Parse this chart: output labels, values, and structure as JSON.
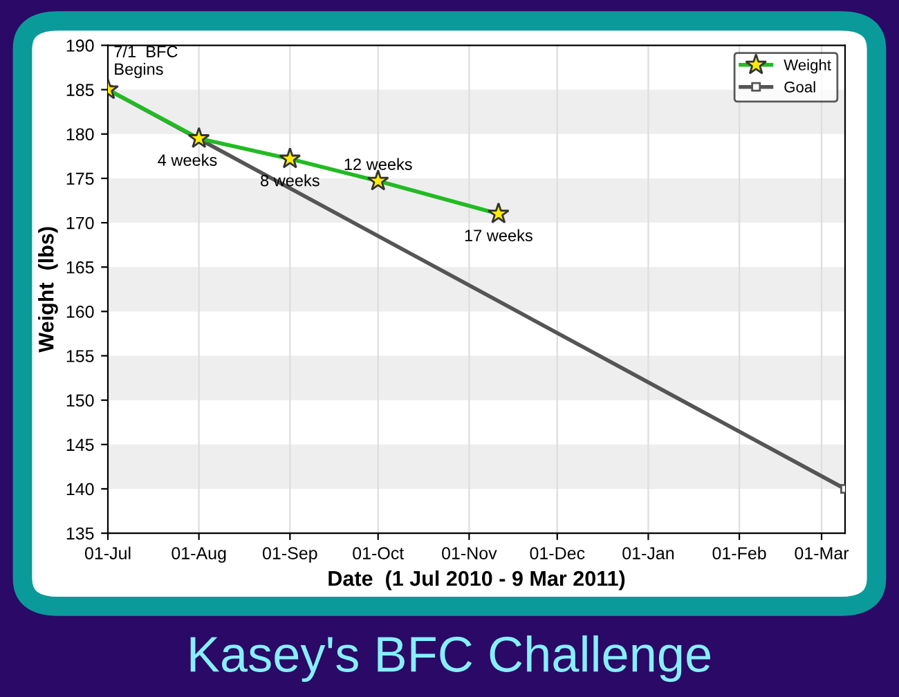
{
  "chart_data": {
    "type": "line",
    "title": "Kasey's BFC Challenge",
    "xlabel": "Date  (1 Jul 2010 - 9 Mar 2011)",
    "ylabel": "Weight  (lbs)",
    "series": [
      {
        "name": "Weight",
        "color": "#22bb22",
        "marker": "star",
        "x": [
          "2010-07-01",
          "2010-08-01",
          "2010-09-01",
          "2010-10-01",
          "2010-11-11"
        ],
        "values": [
          185,
          179.5,
          177.2,
          174.7,
          171
        ]
      },
      {
        "name": "Goal",
        "color": "#555555",
        "marker": "square",
        "x": [
          "2010-07-01",
          "2011-03-09"
        ],
        "values": [
          185,
          140
        ]
      }
    ],
    "annotations": [
      {
        "text": "7/1  BFC\nBegins",
        "x": "2010-07-01",
        "y": 185
      },
      {
        "text": "4 weeks",
        "x": "2010-08-01",
        "y": 179.5
      },
      {
        "text": "8 weeks",
        "x": "2010-09-01",
        "y": 177.2
      },
      {
        "text": "12 weeks",
        "x": "2010-10-01",
        "y": 174.7
      },
      {
        "text": "17 weeks",
        "x": "2010-11-11",
        "y": 171
      }
    ],
    "xlim": [
      "2010-07-01",
      "2011-03-09"
    ],
    "xticks": [
      {
        "value": "2010-07-01",
        "label": "01-Jul"
      },
      {
        "value": "2010-08-01",
        "label": "01-Aug"
      },
      {
        "value": "2010-09-01",
        "label": "01-Sep"
      },
      {
        "value": "2010-10-01",
        "label": "01-Oct"
      },
      {
        "value": "2010-11-01",
        "label": "01-Nov"
      },
      {
        "value": "2010-12-01",
        "label": "01-Dec"
      },
      {
        "value": "2011-01-01",
        "label": "01-Jan"
      },
      {
        "value": "2011-02-01",
        "label": "01-Feb"
      },
      {
        "value": "2011-03-01",
        "label": "01-Mar"
      }
    ],
    "ylim": [
      135,
      190
    ],
    "yticks": [
      135,
      140,
      145,
      150,
      155,
      160,
      165,
      170,
      175,
      180,
      185,
      190
    ],
    "grid": true,
    "legend": "top right",
    "line_style": "solid"
  }
}
